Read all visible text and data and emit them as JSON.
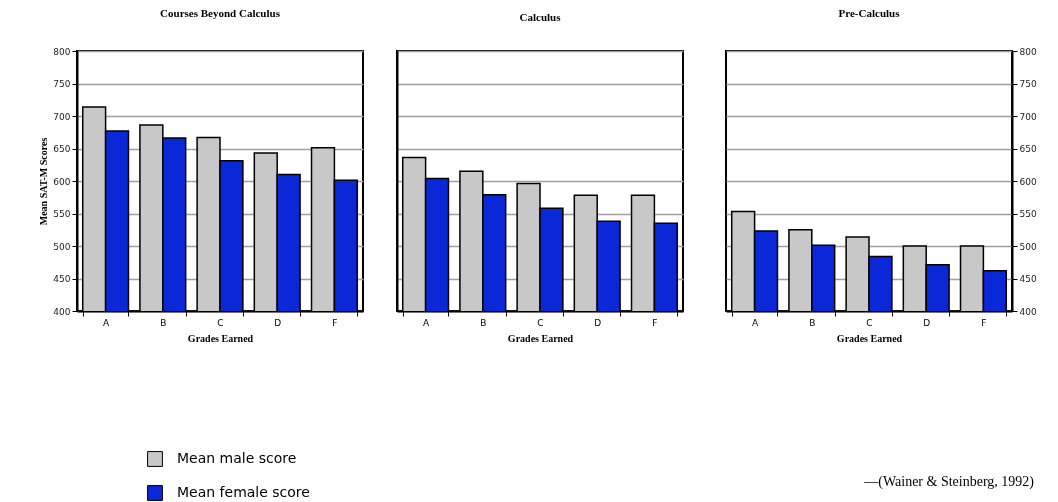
{
  "chart_data": [
    {
      "type": "bar",
      "title": "Courses Beyond Calculus",
      "xlabel": "Grades Earned",
      "ylabel": "Mean SAT-M Scores",
      "categories": [
        "A",
        "B",
        "C",
        "D",
        "F"
      ],
      "series": [
        {
          "name": "Mean male score",
          "color": "#c8c8c8",
          "values": [
            714,
            686,
            667,
            643,
            651
          ]
        },
        {
          "name": "Mean female score",
          "color": "#0a28d8",
          "values": [
            677,
            666,
            631,
            610,
            601
          ]
        }
      ],
      "ylim": [
        400,
        800
      ],
      "yticks": [
        400,
        450,
        500,
        550,
        600,
        650,
        700,
        750,
        800
      ],
      "grid": "y",
      "legend": "bottom left"
    },
    {
      "type": "bar",
      "title": "Calculus",
      "xlabel": "Grades Earned",
      "categories": [
        "A",
        "B",
        "C",
        "D",
        "F"
      ],
      "series": [
        {
          "color": "#c8c8c8",
          "values": [
            636,
            615,
            596,
            578,
            578
          ]
        },
        {
          "color": "#0a28d8",
          "values": [
            604,
            579,
            558,
            538,
            535
          ]
        }
      ],
      "ylim": [
        400,
        800
      ],
      "yticks": [
        400,
        450,
        500,
        550,
        600,
        650,
        700,
        750,
        800
      ],
      "grid": "y",
      "tick_labels": "x"
    },
    {
      "type": "bar",
      "title": "Pre-Calculus",
      "xlabel": "Grades Earned",
      "categories": [
        "A",
        "B",
        "C",
        "D",
        "F"
      ],
      "series": [
        {
          "color": "#c8c8c8",
          "values": [
            553,
            525,
            514,
            500,
            500
          ],
          "axis": "y2"
        },
        {
          "color": "#0a28d8",
          "values": [
            523,
            501,
            484,
            471,
            462
          ],
          "axis": "y2"
        }
      ],
      "y2lim": [
        400,
        800
      ],
      "y2ticks": [
        400,
        450,
        500,
        550,
        600,
        650,
        700,
        750,
        800
      ],
      "grid": "y",
      "annotations": [
        "—(Wainer & Steinberg, 1992)"
      ]
    }
  ]
}
